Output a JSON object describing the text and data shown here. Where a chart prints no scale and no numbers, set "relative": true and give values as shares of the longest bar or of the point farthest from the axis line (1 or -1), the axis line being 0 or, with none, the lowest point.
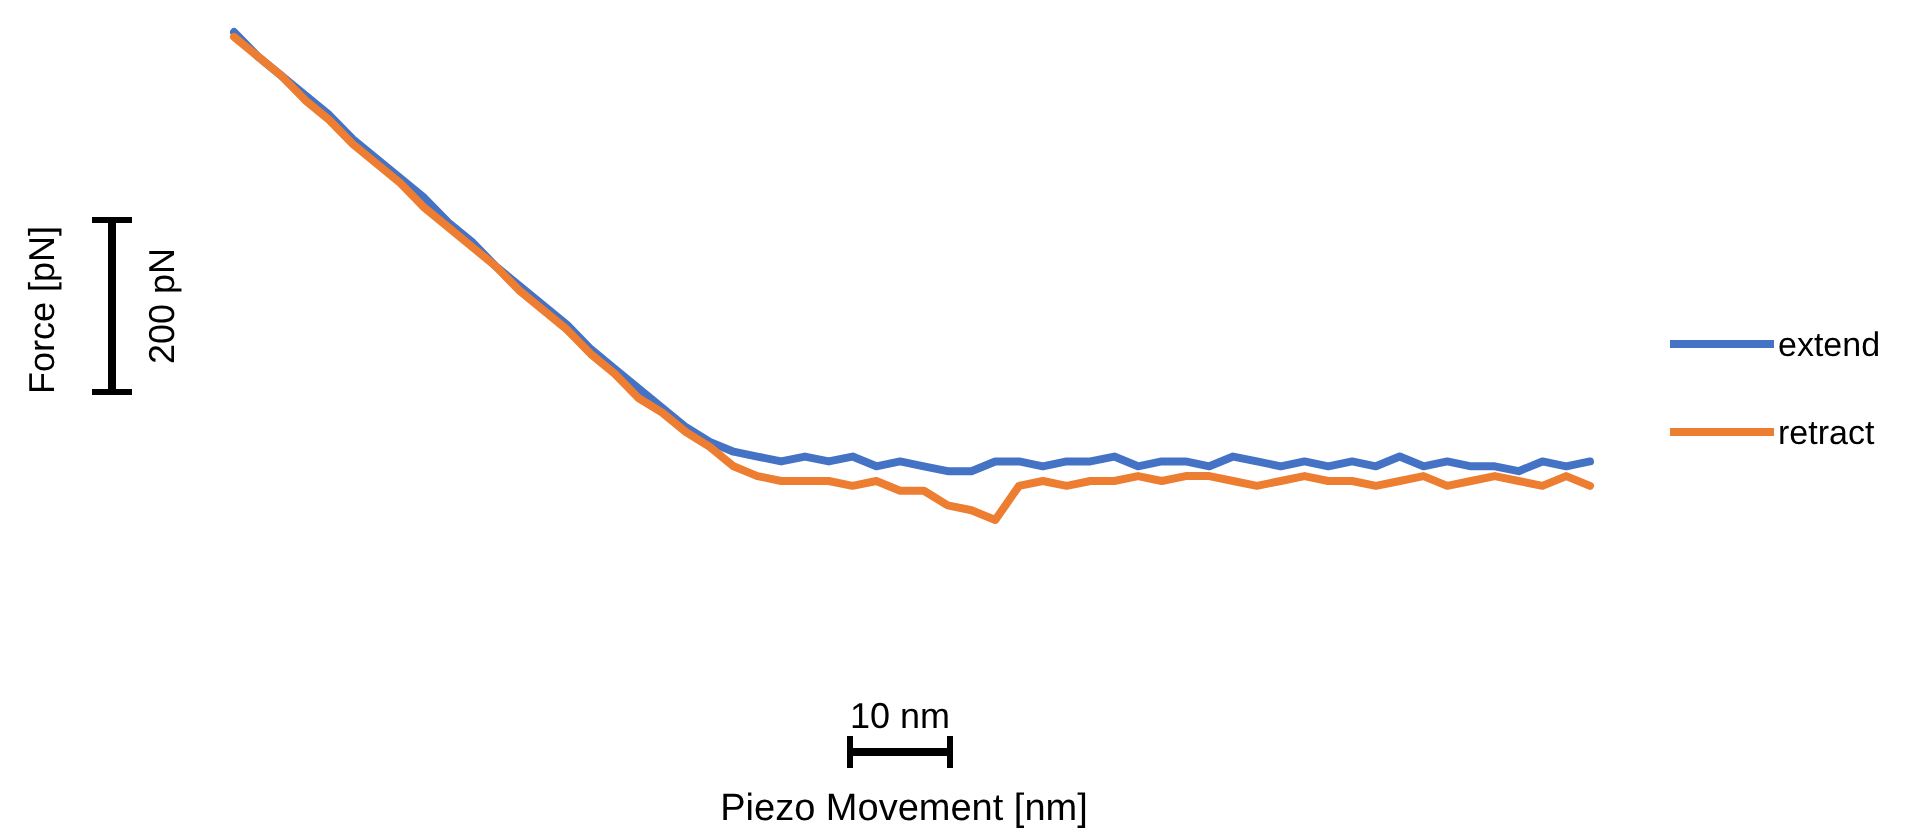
{
  "chart_data": {
    "type": "line",
    "relative": true,
    "ylabel": "Force [pN]",
    "annotations": [
      "200 pN",
      "10 nm",
      "Piezo Movement [nm]"
    ],
    "legend": "right",
    "line_style": "solid",
    "categories": [
      null,
      null,
      null,
      null,
      null,
      null,
      null,
      null,
      null,
      null,
      null,
      null,
      null,
      null,
      null,
      null,
      null,
      null,
      null,
      null,
      null,
      null,
      null,
      null,
      null,
      null,
      null,
      null,
      null,
      null,
      null,
      null,
      null,
      null,
      null,
      null,
      null,
      null,
      null,
      null,
      null,
      null,
      null,
      null,
      null,
      null,
      null,
      null,
      null,
      null,
      null,
      null,
      null,
      null,
      null,
      null,
      null,
      null
    ],
    "series": [
      {
        "name": "extend",
        "color": "#4472c4",
        "values": [
          1.0,
          0.95,
          0.91,
          0.87,
          0.83,
          0.78,
          0.74,
          0.7,
          0.66,
          0.61,
          0.57,
          0.52,
          0.48,
          0.44,
          0.4,
          0.35,
          0.31,
          0.27,
          0.23,
          0.19,
          0.16,
          0.14,
          0.13,
          0.12,
          0.13,
          0.12,
          0.13,
          0.11,
          0.12,
          0.11,
          0.1,
          0.1,
          0.12,
          0.12,
          0.11,
          0.12,
          0.12,
          0.13,
          0.11,
          0.12,
          0.12,
          0.11,
          0.13,
          0.12,
          0.11,
          0.12,
          0.11,
          0.12,
          0.11,
          0.13,
          0.11,
          0.12,
          0.11,
          0.11,
          0.1,
          0.12,
          0.11,
          0.12
        ]
      },
      {
        "name": "retract",
        "color": "#ed7d31",
        "values": [
          0.99,
          0.95,
          0.91,
          0.86,
          0.82,
          0.77,
          0.73,
          0.69,
          0.64,
          0.6,
          0.56,
          0.52,
          0.47,
          0.43,
          0.39,
          0.34,
          0.3,
          0.25,
          0.22,
          0.18,
          0.15,
          0.11,
          0.09,
          0.08,
          0.08,
          0.08,
          0.07,
          0.08,
          0.06,
          0.06,
          0.03,
          0.02,
          0,
          0.07,
          0.08,
          0.07,
          0.08,
          0.08,
          0.09,
          0.08,
          0.09,
          0.09,
          0.08,
          0.07,
          0.08,
          0.09,
          0.08,
          0.08,
          0.07,
          0.08,
          0.09,
          0.07,
          0.08,
          0.09,
          0.08,
          0.07,
          0.09,
          0.07
        ]
      }
    ]
  }
}
